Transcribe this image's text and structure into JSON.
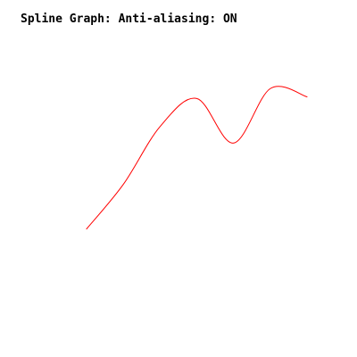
{
  "chart_data": {
    "type": "line",
    "title": "Spline Graph: Anti-aliasing: ON",
    "xlabel": "",
    "ylabel": "",
    "series": [
      {
        "x": [
          0,
          1,
          2,
          3,
          4,
          5,
          6
        ],
        "values": [
          1.0,
          3.7,
          7.2,
          8.9,
          6.2,
          9.5,
          9.0
        ]
      }
    ],
    "xlim": [
      0,
      6
    ],
    "ylim": [
      0,
      10
    ],
    "grid": false,
    "axes_visible": false,
    "smooth": true,
    "anti_aliasing": true
  },
  "colors": {
    "background": "#ffffff",
    "title": "#000000",
    "line": "#ff0000"
  }
}
